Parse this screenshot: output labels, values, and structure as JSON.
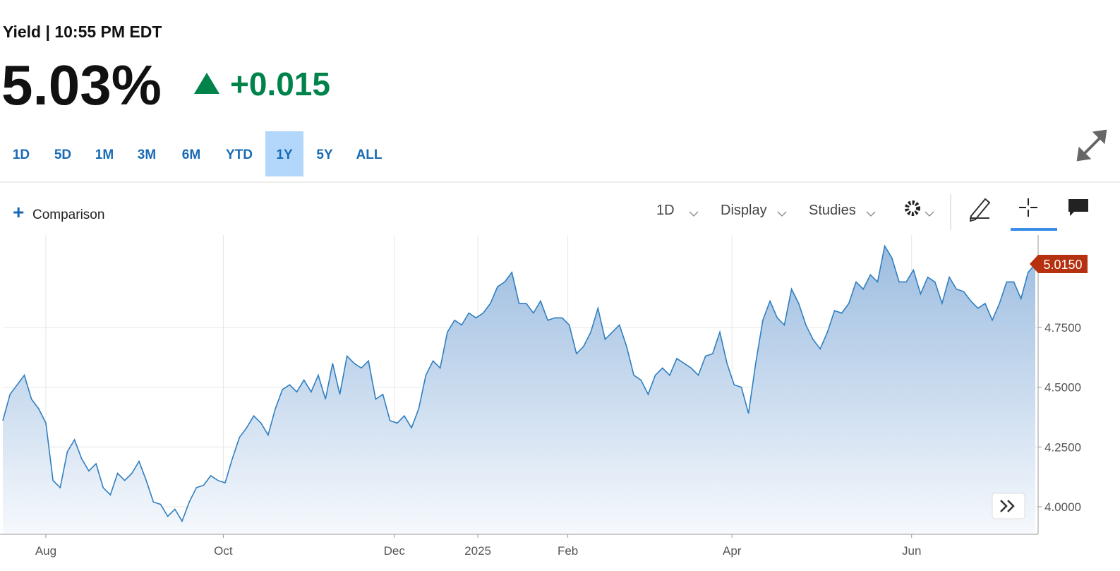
{
  "header": {
    "title": "Yield | 10:55 PM EDT",
    "price": "5.03%",
    "change": "+0.015"
  },
  "ranges": [
    "1D",
    "5D",
    "1M",
    "3M",
    "6M",
    "YTD",
    "1Y",
    "5Y",
    "ALL"
  ],
  "toolbar": {
    "comparison": "Comparison",
    "interval": "1D",
    "display": "Display",
    "studies": "Studies"
  },
  "chart_data": {
    "type": "area",
    "color": "#2f7fc1",
    "grid": true,
    "xlim": [
      0,
      144
    ],
    "ylim": [
      3.885,
      5.136
    ],
    "yticks": [
      {
        "value": 4,
        "label": "4.0000"
      },
      {
        "value": 4.25,
        "label": "4.2500"
      },
      {
        "value": 4.5,
        "label": "4.5000"
      },
      {
        "value": 4.75,
        "label": "4.7500"
      }
    ],
    "xticks": [
      {
        "value": 6,
        "label": "Aug"
      },
      {
        "value": 30.75,
        "label": "Oct"
      },
      {
        "value": 54.6,
        "label": "Dec"
      },
      {
        "value": 66.25,
        "label": "2025"
      },
      {
        "value": 78.8,
        "label": "Feb"
      },
      {
        "value": 101.7,
        "label": "Apr"
      },
      {
        "value": 126.75,
        "label": "Jun"
      }
    ],
    "last_value_label": "5.0150",
    "values": [
      4.36,
      4.47,
      4.51,
      4.55,
      4.45,
      4.41,
      4.35,
      4.11,
      4.08,
      4.23,
      4.28,
      4.2,
      4.15,
      4.18,
      4.08,
      4.05,
      4.14,
      4.11,
      4.14,
      4.19,
      4.11,
      4.02,
      4.01,
      3.96,
      3.99,
      3.94,
      4.02,
      4.08,
      4.09,
      4.13,
      4.11,
      4.1,
      4.2,
      4.29,
      4.33,
      4.38,
      4.35,
      4.3,
      4.41,
      4.49,
      4.51,
      4.48,
      4.53,
      4.48,
      4.55,
      4.45,
      4.6,
      4.47,
      4.63,
      4.6,
      4.58,
      4.61,
      4.45,
      4.47,
      4.36,
      4.35,
      4.38,
      4.33,
      4.41,
      4.55,
      4.61,
      4.58,
      4.73,
      4.78,
      4.76,
      4.81,
      4.79,
      4.81,
      4.85,
      4.92,
      4.94,
      4.98,
      4.85,
      4.85,
      4.81,
      4.86,
      4.78,
      4.79,
      4.79,
      4.76,
      4.64,
      4.67,
      4.73,
      4.83,
      4.7,
      4.73,
      4.76,
      4.67,
      4.55,
      4.53,
      4.47,
      4.55,
      4.58,
      4.55,
      4.62,
      4.6,
      4.58,
      4.55,
      4.63,
      4.64,
      4.73,
      4.6,
      4.51,
      4.5,
      4.39,
      4.6,
      4.78,
      4.86,
      4.79,
      4.76,
      4.91,
      4.85,
      4.76,
      4.7,
      4.66,
      4.73,
      4.82,
      4.81,
      4.85,
      4.94,
      4.91,
      4.97,
      4.94,
      5.09,
      5.04,
      4.94,
      4.94,
      4.99,
      4.89,
      4.96,
      4.94,
      4.85,
      4.96,
      4.91,
      4.9,
      4.86,
      4.83,
      4.85,
      4.78,
      4.85,
      4.94,
      4.94,
      4.87,
      4.98,
      5.015
    ]
  }
}
